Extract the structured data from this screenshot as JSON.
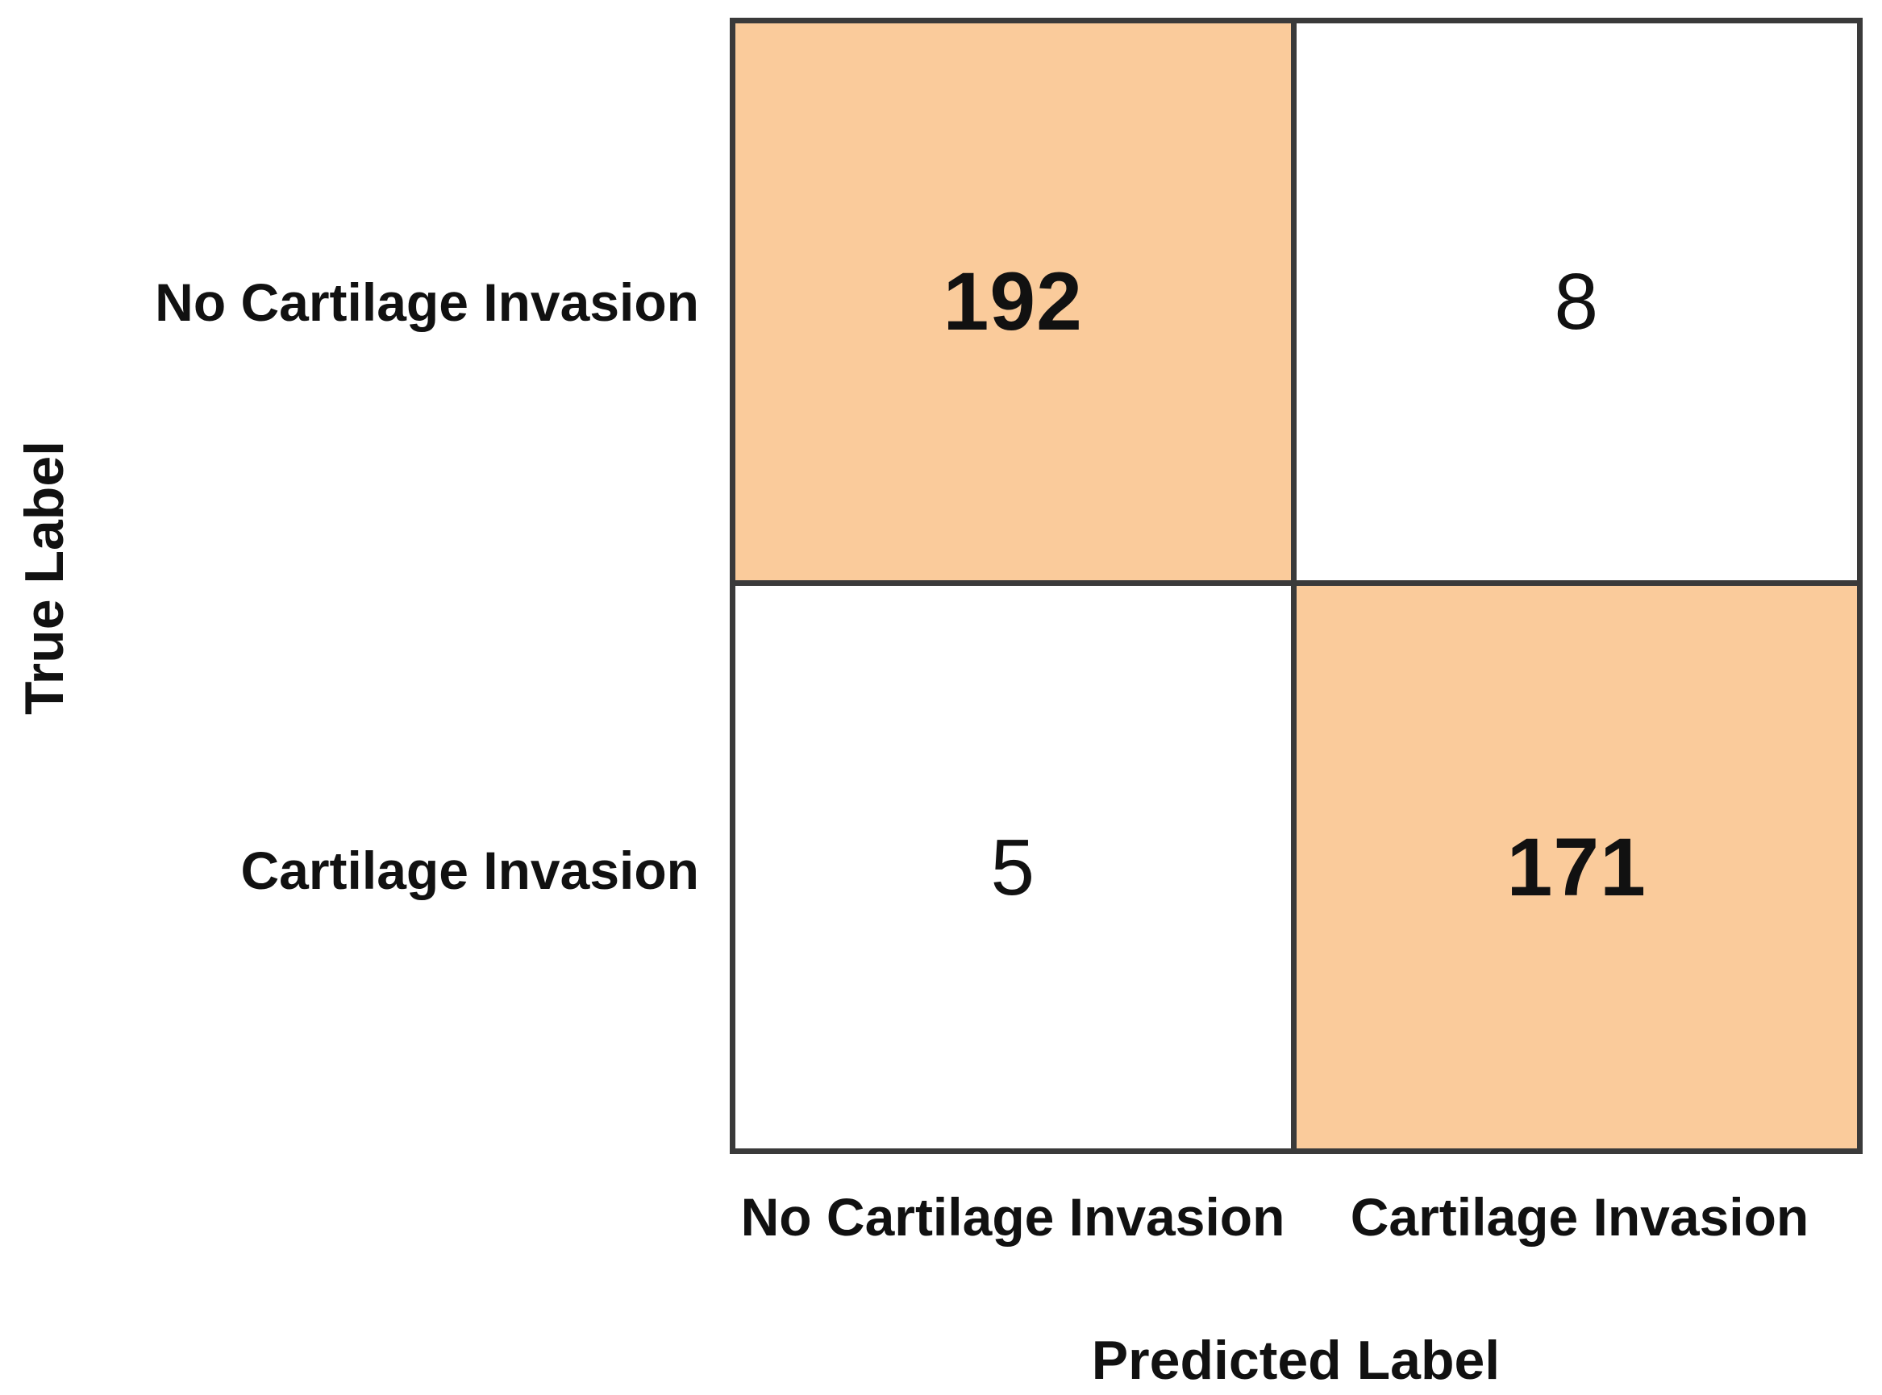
{
  "chart_data": {
    "type": "heatmap",
    "subtype": "confusion-matrix",
    "xlabel": "Predicted Label",
    "ylabel": "True Label",
    "row_labels": [
      "No Cartilage Invasion",
      "Cartilage Invasion"
    ],
    "col_labels": [
      "No Cartilage Invasion",
      "Cartilage Invasion"
    ],
    "matrix": [
      [
        192,
        8
      ],
      [
        5,
        171
      ]
    ],
    "highlighted_cells": [
      [
        0,
        0
      ],
      [
        1,
        1
      ]
    ],
    "legend": "none",
    "grid": "on",
    "colors": {
      "diagonal_fill": "#facb9b",
      "off_diagonal_fill": "#ffffff",
      "grid_line": "#3a3a3a",
      "text": "#111111"
    }
  }
}
